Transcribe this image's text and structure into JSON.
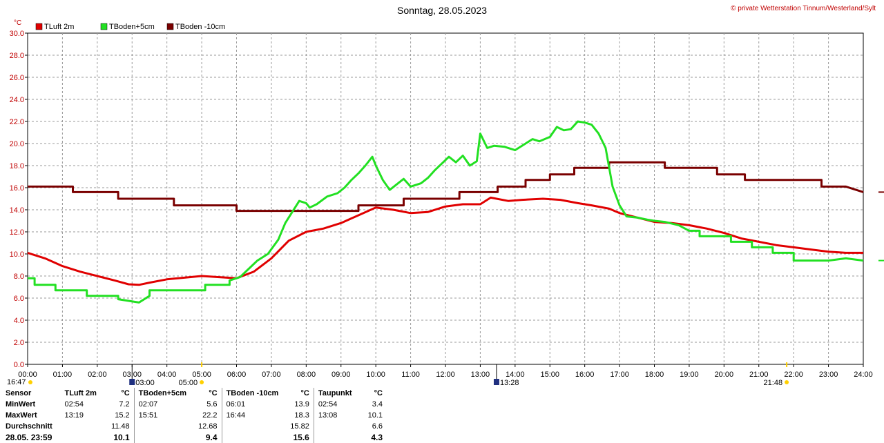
{
  "title": "Sonntag, 28.05.2023",
  "copyright": "© private Wetterstation Tinnum/Westerland/Sylt",
  "chart_data": {
    "type": "line",
    "y_unit": "°C",
    "ylim": [
      0,
      30
    ],
    "y_ticks": [
      "0.0",
      "2.0",
      "4.0",
      "6.0",
      "8.0",
      "10.0",
      "12.0",
      "14.0",
      "16.0",
      "18.0",
      "20.0",
      "22.0",
      "24.0",
      "26.0",
      "28.0",
      "30.0"
    ],
    "xlim": [
      0,
      24
    ],
    "x_ticks": [
      "00:00",
      "01:00",
      "02:00",
      "03:00",
      "04:00",
      "05:00",
      "06:00",
      "07:00",
      "08:00",
      "09:00",
      "10:00",
      "11:00",
      "12:00",
      "13:00",
      "14:00",
      "15:00",
      "16:00",
      "17:00",
      "18:00",
      "19:00",
      "20:00",
      "21:00",
      "22:00",
      "23:00",
      "24:00"
    ],
    "grid": true,
    "legend_position": "top-left",
    "series": [
      {
        "name": "TLuft 2m",
        "color": "#e00000",
        "x": [
          0,
          0.5,
          1,
          1.5,
          2,
          2.5,
          2.9,
          3.2,
          3.5,
          4,
          4.5,
          5,
          5.5,
          6,
          6.5,
          7,
          7.5,
          8,
          8.5,
          9,
          9.5,
          10,
          10.5,
          11,
          11.5,
          12,
          12.5,
          13,
          13.3,
          13.8,
          14.2,
          14.8,
          15.3,
          15.8,
          16.2,
          16.7,
          17,
          17.5,
          18,
          18.5,
          19,
          19.5,
          20,
          20.5,
          21,
          21.5,
          22,
          22.5,
          23,
          23.5,
          24
        ],
        "values": [
          10.1,
          9.6,
          8.9,
          8.4,
          8.0,
          7.6,
          7.25,
          7.2,
          7.4,
          7.7,
          7.85,
          8.0,
          7.9,
          7.8,
          8.4,
          9.6,
          11.2,
          12.0,
          12.3,
          12.8,
          13.5,
          14.2,
          14.0,
          13.7,
          13.8,
          14.3,
          14.5,
          14.5,
          15.1,
          14.8,
          14.9,
          15.0,
          14.9,
          14.6,
          14.4,
          14.1,
          13.7,
          13.3,
          12.9,
          12.8,
          12.6,
          12.3,
          11.9,
          11.4,
          11.1,
          10.8,
          10.6,
          10.4,
          10.2,
          10.1,
          10.1
        ]
      },
      {
        "name": "TBoden+5cm",
        "color": "#22e022",
        "x": [
          0,
          0.2,
          0.2,
          0.8,
          0.8,
          1.7,
          1.7,
          2.6,
          2.6,
          3.2,
          3.2,
          3.5,
          3.5,
          5.1,
          5.1,
          5.8,
          5.8,
          6.1,
          6.3,
          6.6,
          6.9,
          7.2,
          7.4,
          7.6,
          7.8,
          8.0,
          8.1,
          8.3,
          8.6,
          8.9,
          9.1,
          9.3,
          9.5,
          9.7,
          9.9,
          10.0,
          10.2,
          10.4,
          10.6,
          10.8,
          11.0,
          11.3,
          11.5,
          11.7,
          11.9,
          12.1,
          12.3,
          12.5,
          12.7,
          12.9,
          13.0,
          13.2,
          13.4,
          13.7,
          14.0,
          14.3,
          14.5,
          14.7,
          15.0,
          15.2,
          15.4,
          15.6,
          15.8,
          16.0,
          16.2,
          16.4,
          16.6,
          16.8,
          17.0,
          17.2,
          17.5,
          17.8,
          18.0,
          18.3,
          18.7,
          19.0,
          19.3,
          19.3,
          20.2,
          20.2,
          20.8,
          20.8,
          21.4,
          21.4,
          22.0,
          22.0,
          23.0,
          23.5,
          23.5,
          24
        ],
        "values": [
          7.8,
          7.8,
          7.2,
          7.2,
          6.7,
          6.7,
          6.2,
          6.2,
          5.9,
          5.6,
          5.6,
          6.2,
          6.7,
          6.7,
          7.2,
          7.2,
          7.6,
          7.9,
          8.5,
          9.4,
          10.0,
          11.3,
          12.8,
          13.8,
          14.8,
          14.6,
          14.2,
          14.5,
          15.2,
          15.5,
          16.0,
          16.7,
          17.3,
          18.0,
          18.8,
          18.0,
          16.7,
          15.8,
          16.3,
          16.8,
          16.1,
          16.4,
          16.9,
          17.6,
          18.2,
          18.8,
          18.3,
          18.9,
          18.0,
          18.4,
          20.9,
          19.6,
          19.8,
          19.7,
          19.4,
          20.0,
          20.4,
          20.2,
          20.6,
          21.5,
          21.2,
          21.3,
          22.0,
          21.9,
          21.7,
          20.9,
          19.6,
          16.1,
          14.4,
          13.4,
          13.3,
          13.1,
          13.0,
          12.9,
          12.6,
          12.1,
          12.1,
          11.6,
          11.6,
          11.1,
          11.1,
          10.6,
          10.6,
          10.1,
          10.1,
          9.4,
          9.4,
          9.6,
          9.6,
          9.4
        ]
      },
      {
        "name": "TBoden -10cm",
        "color": "#7a0000",
        "x": [
          0,
          1.3,
          1.3,
          2.6,
          2.6,
          4.2,
          4.2,
          6.0,
          6.0,
          9.5,
          9.5,
          10.8,
          10.8,
          12.4,
          12.4,
          13.5,
          13.5,
          14.3,
          14.3,
          15.0,
          15.0,
          15.7,
          15.7,
          16.7,
          16.7,
          17.7,
          17.7,
          18.3,
          18.3,
          19.8,
          19.8,
          20.6,
          20.6,
          21.6,
          21.6,
          22.8,
          22.8,
          23.5,
          23.5,
          24
        ],
        "values": [
          16.1,
          16.1,
          15.6,
          15.6,
          15.0,
          15.0,
          14.4,
          14.4,
          13.9,
          13.9,
          14.4,
          14.4,
          15.0,
          15.0,
          15.6,
          15.6,
          16.1,
          16.1,
          16.7,
          16.7,
          17.2,
          17.2,
          17.8,
          17.8,
          18.3,
          18.3,
          18.3,
          18.3,
          17.8,
          17.8,
          17.2,
          17.2,
          16.7,
          16.7,
          16.7,
          16.7,
          16.1,
          16.1,
          16.1,
          15.6
        ]
      }
    ],
    "markers": [
      {
        "label": "16:47",
        "color": "#ffd000"
      },
      {
        "label": "03:00",
        "color": "#203080"
      },
      {
        "label": "05:00",
        "color": "#ffd000"
      },
      {
        "label": "13:28",
        "color": "#203080"
      },
      {
        "label": "21:48",
        "color": "#ffd000"
      }
    ]
  },
  "stats": {
    "headers": {
      "sensor": "Sensor",
      "s1": "TLuft 2m",
      "s2": "TBoden+5cm",
      "s3": "TBoden -10cm",
      "s4": "Taupunkt",
      "unit": "°C"
    },
    "rows": [
      {
        "label": "MinWert",
        "c1t": "02:54",
        "c1v": "7.2",
        "c2t": "02:07",
        "c2v": "5.6",
        "c3t": "06:01",
        "c3v": "13.9",
        "c4t": "02:54",
        "c4v": "3.4"
      },
      {
        "label": "MaxWert",
        "c1t": "13:19",
        "c1v": "15.2",
        "c2t": "15:51",
        "c2v": "22.2",
        "c3t": "16:44",
        "c3v": "18.3",
        "c4t": "13:08",
        "c4v": "10.1"
      },
      {
        "label": "Durchschnitt",
        "c1t": "",
        "c1v": "11.48",
        "c2t": "",
        "c2v": "12.68",
        "c3t": "",
        "c3v": "15.82",
        "c4t": "",
        "c4v": "6.6"
      },
      {
        "label": "28.05. 23:59",
        "c1t": "",
        "c1v": "10.1",
        "c2t": "",
        "c2v": "9.4",
        "c3t": "",
        "c3v": "15.6",
        "c4t": "",
        "c4v": "4.3"
      }
    ]
  }
}
